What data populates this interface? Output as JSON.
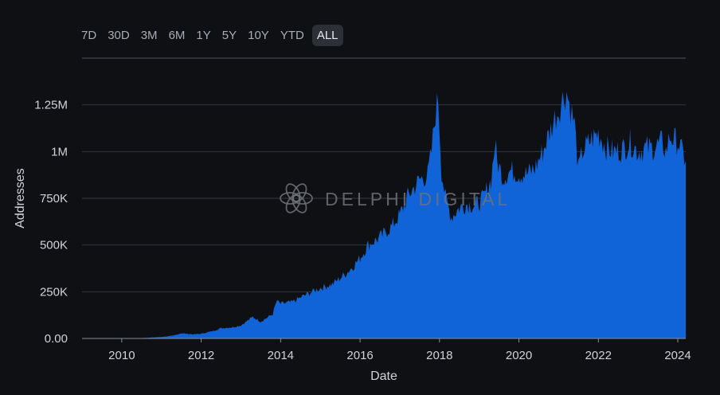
{
  "range_selector": {
    "options": [
      "7D",
      "30D",
      "3M",
      "6M",
      "1Y",
      "5Y",
      "10Y",
      "YTD",
      "ALL"
    ],
    "selected": "ALL"
  },
  "watermark": "DELPHI DIGITAL",
  "colors": {
    "area": "#1064d8",
    "background": "#0f1013",
    "grid": "#33363d"
  },
  "chart_data": {
    "type": "area",
    "xlabel": "Date",
    "ylabel": "Addresses",
    "ytick_labels": [
      "0.00",
      "250K",
      "500K",
      "750K",
      "1M",
      "1.25M"
    ],
    "xtick_labels": [
      "2010",
      "2012",
      "2014",
      "2016",
      "2018",
      "2020",
      "2022",
      "2024"
    ],
    "xlim": [
      2009.0,
      2024.2
    ],
    "ylim": [
      0,
      1500000
    ],
    "grid": true,
    "series": [
      {
        "x": [
          2009.0,
          2010.0,
          2010.5,
          2011.0,
          2011.3,
          2011.5,
          2011.8,
          2012.0,
          2012.3,
          2012.5,
          2012.8,
          2013.0,
          2013.2,
          2013.3,
          2013.5,
          2013.8,
          2013.9,
          2014.0,
          2014.3,
          2014.6,
          2015.0,
          2015.3,
          2015.6,
          2015.8,
          2016.0,
          2016.2,
          2016.5,
          2016.8,
          2017.0,
          2017.2,
          2017.5,
          2017.7,
          2017.8,
          2017.9,
          2017.97,
          2018.05,
          2018.15,
          2018.3,
          2018.5,
          2018.7,
          2018.9,
          2019.1,
          2019.3,
          2019.4,
          2019.45,
          2019.6,
          2019.8,
          2020.0,
          2020.2,
          2020.4,
          2020.6,
          2020.8,
          2020.9,
          2021.0,
          2021.1,
          2021.2,
          2021.3,
          2021.4,
          2021.5,
          2021.6,
          2021.8,
          2022.0,
          2022.2,
          2022.4,
          2022.6,
          2022.8,
          2023.0,
          2023.2,
          2023.4,
          2023.6,
          2023.7,
          2023.8,
          2024.0,
          2024.1,
          2024.2
        ],
        "y": [
          0,
          200,
          2000,
          8000,
          15000,
          28000,
          22000,
          25000,
          40000,
          55000,
          60000,
          70000,
          100000,
          115000,
          90000,
          130000,
          200000,
          185000,
          195000,
          230000,
          270000,
          290000,
          340000,
          380000,
          430000,
          500000,
          540000,
          600000,
          660000,
          760000,
          850000,
          870000,
          1000000,
          1210000,
          1280000,
          900000,
          750000,
          650000,
          700000,
          720000,
          710000,
          750000,
          850000,
          1050000,
          950000,
          860000,
          900000,
          880000,
          880000,
          910000,
          1000000,
          1120000,
          1180000,
          1220000,
          1280000,
          1320000,
          1230000,
          1150000,
          900000,
          1000000,
          1060000,
          1100000,
          1020000,
          1000000,
          1010000,
          1050000,
          1000000,
          1020000,
          1020000,
          1050000,
          1000000,
          1080000,
          1050000,
          1000000,
          950000
        ]
      }
    ]
  }
}
